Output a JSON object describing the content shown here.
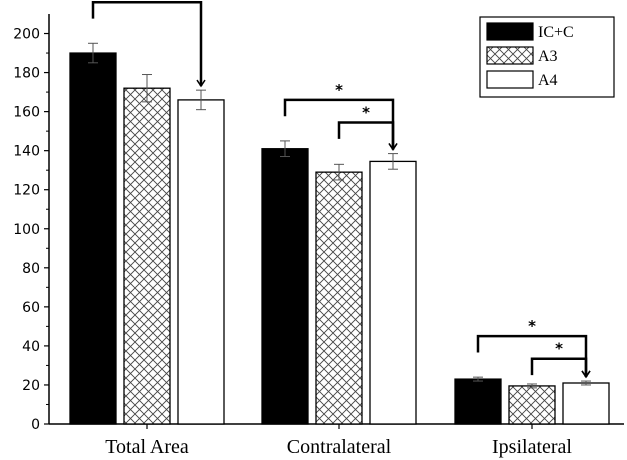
{
  "chart_data": {
    "type": "bar",
    "categories": [
      "Total Area",
      "Contralateral",
      "Ipsilateral"
    ],
    "series": [
      {
        "name": "IC+C",
        "values": [
          190,
          141,
          23
        ],
        "errors": [
          5,
          4,
          1
        ],
        "fill": "#000000",
        "pattern": "solid"
      },
      {
        "name": "A3",
        "values": [
          172,
          129,
          19.5
        ],
        "errors": [
          7,
          4,
          1
        ],
        "fill": "#ffffff",
        "pattern": "crosshatch"
      },
      {
        "name": "A4",
        "values": [
          166,
          134.5,
          21
        ],
        "errors": [
          5,
          4,
          1
        ],
        "fill": "#ffffff",
        "pattern": "none"
      }
    ],
    "ylim": [
      0,
      210
    ],
    "yticks": [
      0,
      20,
      40,
      60,
      80,
      100,
      120,
      140,
      160,
      180,
      200
    ],
    "legend_position": "top-right",
    "significance": [
      {
        "category": 0,
        "from": 0,
        "to": 2,
        "label": "*"
      },
      {
        "category": 1,
        "from": 0,
        "to": 2,
        "label": "*"
      },
      {
        "category": 1,
        "from": 1,
        "to": 2,
        "label": "*"
      },
      {
        "category": 2,
        "from": 0,
        "to": 2,
        "label": "*"
      },
      {
        "category": 2,
        "from": 1,
        "to": 2,
        "label": "*"
      }
    ]
  }
}
